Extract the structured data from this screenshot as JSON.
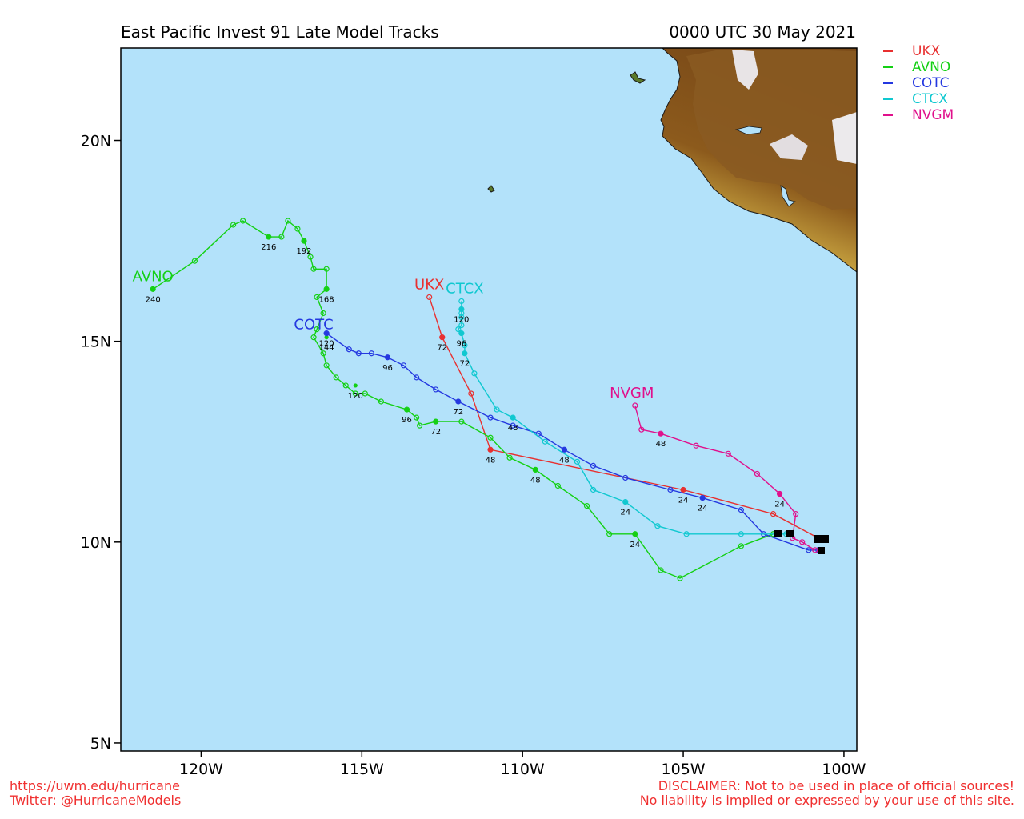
{
  "header": {
    "title": "East Pacific Invest 91 Late Model Tracks",
    "datetime": "0000 UTC 30 May 2021"
  },
  "map": {
    "lon_range": [
      -122.5,
      -99.6
    ],
    "lat_range": [
      4.8,
      22.3
    ],
    "ocean_color": "#b3e2fa",
    "lon_ticks": [
      {
        "v": -120,
        "label": "120W"
      },
      {
        "v": -115,
        "label": "115W"
      },
      {
        "v": -110,
        "label": "110W"
      },
      {
        "v": -105,
        "label": "105W"
      },
      {
        "v": -100,
        "label": "100W"
      }
    ],
    "lat_ticks": [
      {
        "v": 20,
        "label": "20N"
      },
      {
        "v": 15,
        "label": "15N"
      },
      {
        "v": 10,
        "label": "10N"
      },
      {
        "v": 5,
        "label": "5N"
      }
    ]
  },
  "legend": [
    {
      "name": "UKX",
      "color": "#e83030"
    },
    {
      "name": "AVNO",
      "color": "#14d014"
    },
    {
      "name": "COTC",
      "color": "#2438e0"
    },
    {
      "name": "CTCX",
      "color": "#10c8d0"
    },
    {
      "name": "NVGM",
      "color": "#e0108c"
    }
  ],
  "tracks": [
    {
      "name": "UKX",
      "color": "#e83030",
      "label_pos": [
        -112.9,
        16.3
      ],
      "points": [
        [
          -100.8,
          10.1
        ],
        [
          -102.2,
          10.7
        ],
        [
          -105.0,
          11.3
        ],
        [
          -111.0,
          12.3
        ],
        [
          -111.6,
          13.7
        ],
        [
          -112.5,
          15.1
        ],
        [
          -112.9,
          16.1
        ]
      ],
      "hour_labels": [
        {
          "p": [
            -105.0,
            11.3
          ],
          "t": "24"
        },
        {
          "p": [
            -111.0,
            12.3
          ],
          "t": "48"
        },
        {
          "p": [
            -112.5,
            15.1
          ],
          "t": "72"
        }
      ]
    },
    {
      "name": "AVNO",
      "color": "#14d014",
      "label_pos": [
        -121.5,
        16.5
      ],
      "points": [
        [
          -102.2,
          10.2
        ],
        [
          -103.2,
          9.9
        ],
        [
          -105.1,
          9.1
        ],
        [
          -105.7,
          9.3
        ],
        [
          -106.5,
          10.2
        ],
        [
          -107.3,
          10.2
        ],
        [
          -108.0,
          10.9
        ],
        [
          -108.9,
          11.4
        ],
        [
          -109.6,
          11.8
        ],
        [
          -110.4,
          12.1
        ],
        [
          -111.0,
          12.6
        ],
        [
          -111.9,
          13.0
        ],
        [
          -112.7,
          13.0
        ],
        [
          -113.2,
          12.9
        ],
        [
          -113.3,
          13.1
        ],
        [
          -113.6,
          13.3
        ],
        [
          -114.4,
          13.5
        ],
        [
          -114.9,
          13.7
        ],
        [
          -115.2,
          13.7
        ],
        [
          -115.5,
          13.9
        ],
        [
          -115.8,
          14.1
        ],
        [
          -116.1,
          14.4
        ],
        [
          -116.2,
          14.7
        ],
        [
          -116.5,
          15.1
        ],
        [
          -116.4,
          15.3
        ],
        [
          -116.2,
          15.7
        ],
        [
          -116.4,
          16.1
        ],
        [
          -116.1,
          16.3
        ],
        [
          -116.1,
          16.8
        ],
        [
          -116.5,
          16.8
        ],
        [
          -116.6,
          17.1
        ],
        [
          -116.8,
          17.5
        ],
        [
          -117.0,
          17.8
        ],
        [
          -117.3,
          18.0
        ],
        [
          -117.5,
          17.6
        ],
        [
          -117.9,
          17.6
        ],
        [
          -118.7,
          18.0
        ],
        [
          -119.0,
          17.9
        ],
        [
          -120.2,
          17.0
        ],
        [
          -121.5,
          16.3
        ]
      ],
      "hour_labels": [
        {
          "p": [
            -106.5,
            10.2
          ],
          "t": "24"
        },
        {
          "p": [
            -109.6,
            11.8
          ],
          "t": "48"
        },
        {
          "p": [
            -112.7,
            13.0
          ],
          "t": "72"
        },
        {
          "p": [
            -113.6,
            13.3
          ],
          "t": "96"
        },
        {
          "p": [
            -115.2,
            13.9
          ],
          "t": "120"
        },
        {
          "p": [
            -116.1,
            15.1
          ],
          "t": "144"
        },
        {
          "p": [
            -116.1,
            16.3
          ],
          "t": "168"
        },
        {
          "p": [
            -116.8,
            17.5
          ],
          "t": "192"
        },
        {
          "p": [
            -117.9,
            17.6
          ],
          "t": "216"
        },
        {
          "p": [
            -121.5,
            16.3
          ],
          "t": "240"
        }
      ]
    },
    {
      "name": "COTC",
      "color": "#2438e0",
      "label_pos": [
        -116.5,
        15.3
      ],
      "points": [
        [
          -100.8,
          9.8
        ],
        [
          -101.1,
          9.8
        ],
        [
          -102.5,
          10.2
        ],
        [
          -103.2,
          10.8
        ],
        [
          -104.4,
          11.1
        ],
        [
          -105.4,
          11.3
        ],
        [
          -106.8,
          11.6
        ],
        [
          -107.8,
          11.9
        ],
        [
          -108.7,
          12.3
        ],
        [
          -109.5,
          12.7
        ],
        [
          -110.3,
          12.9
        ],
        [
          -111.0,
          13.1
        ],
        [
          -112.0,
          13.5
        ],
        [
          -112.7,
          13.8
        ],
        [
          -113.3,
          14.1
        ],
        [
          -113.7,
          14.4
        ],
        [
          -114.2,
          14.6
        ],
        [
          -114.7,
          14.7
        ],
        [
          -115.1,
          14.7
        ],
        [
          -115.4,
          14.8
        ],
        [
          -116.1,
          15.2
        ]
      ],
      "hour_labels": [
        {
          "p": [
            -104.4,
            11.1
          ],
          "t": "24"
        },
        {
          "p": [
            -108.7,
            12.3
          ],
          "t": "48"
        },
        {
          "p": [
            -112.0,
            13.5
          ],
          "t": "72"
        },
        {
          "p": [
            -114.2,
            14.6
          ],
          "t": "96"
        },
        {
          "p": [
            -116.1,
            15.2
          ],
          "t": "120"
        }
      ]
    },
    {
      "name": "CTCX",
      "color": "#10c8d0",
      "label_pos": [
        -111.8,
        16.2
      ],
      "points": [
        [
          -101.8,
          10.2
        ],
        [
          -103.2,
          10.2
        ],
        [
          -104.9,
          10.2
        ],
        [
          -105.8,
          10.4
        ],
        [
          -106.8,
          11.0
        ],
        [
          -107.8,
          11.3
        ],
        [
          -108.3,
          12.0
        ],
        [
          -109.3,
          12.5
        ],
        [
          -110.3,
          13.1
        ],
        [
          -110.8,
          13.3
        ],
        [
          -111.5,
          14.2
        ],
        [
          -111.8,
          14.7
        ],
        [
          -111.8,
          14.9
        ],
        [
          -111.9,
          15.2
        ],
        [
          -112.0,
          15.3
        ],
        [
          -111.9,
          15.4
        ],
        [
          -111.9,
          15.6
        ],
        [
          -111.9,
          15.7
        ],
        [
          -111.9,
          15.8
        ],
        [
          -111.9,
          16.0
        ]
      ],
      "hour_labels": [
        {
          "p": [
            -106.8,
            11.0
          ],
          "t": "24"
        },
        {
          "p": [
            -110.3,
            13.1
          ],
          "t": "48"
        },
        {
          "p": [
            -111.8,
            14.7
          ],
          "t": "72"
        },
        {
          "p": [
            -111.9,
            15.2
          ],
          "t": "96"
        },
        {
          "p": [
            -111.9,
            15.8
          ],
          "t": "120"
        }
      ]
    },
    {
      "name": "NVGM",
      "color": "#e0108c",
      "label_pos": [
        -106.6,
        13.6
      ],
      "points": [
        [
          -100.9,
          9.8
        ],
        [
          -101.3,
          10.0
        ],
        [
          -101.6,
          10.1
        ],
        [
          -101.5,
          10.7
        ],
        [
          -102.0,
          11.2
        ],
        [
          -102.7,
          11.7
        ],
        [
          -103.6,
          12.2
        ],
        [
          -104.6,
          12.4
        ],
        [
          -105.7,
          12.7
        ],
        [
          -106.3,
          12.8
        ],
        [
          -106.5,
          13.4
        ]
      ],
      "hour_labels": [
        {
          "p": [
            -102.0,
            11.2
          ],
          "t": "24"
        },
        {
          "p": [
            -105.7,
            12.7
          ],
          "t": "48"
        }
      ]
    }
  ],
  "footer": {
    "left_line1": "https://uwm.edu/hurricane",
    "left_line2": "Twitter: @HurricaneModels",
    "right_line1": "DISCLAIMER: Not to be used in place of official sources!",
    "right_line2": "No liability is implied or expressed by your use of this site.",
    "color": "#f03030"
  }
}
